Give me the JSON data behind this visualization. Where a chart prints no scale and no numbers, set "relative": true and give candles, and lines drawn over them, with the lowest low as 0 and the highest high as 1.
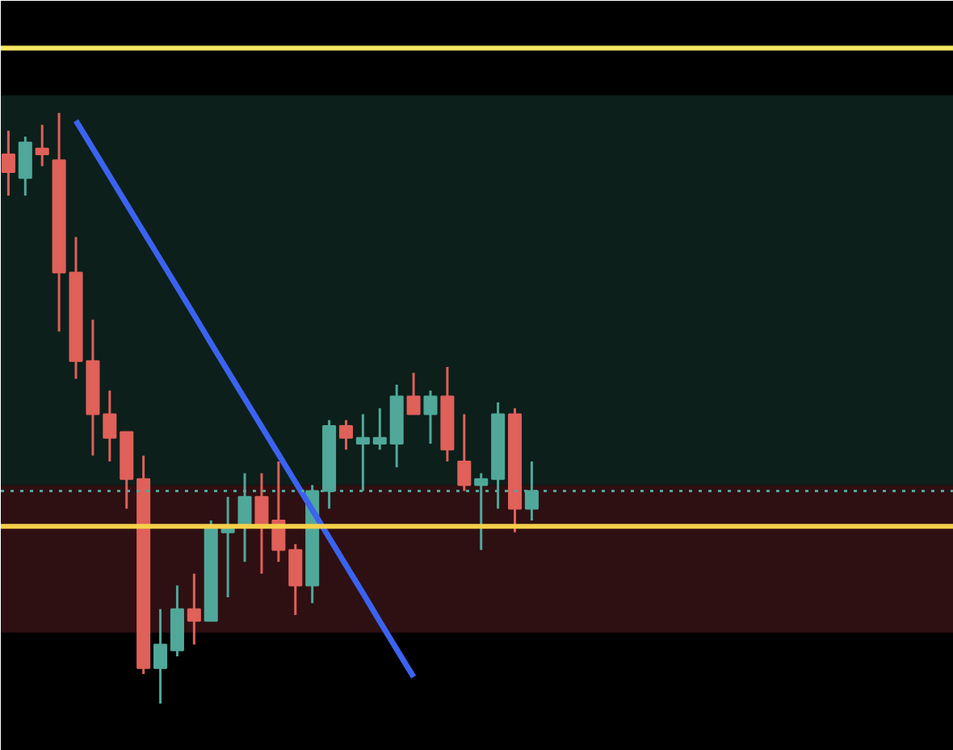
{
  "chart_data": {
    "type": "candlestick",
    "relative": true,
    "categories": [
      null,
      null,
      null,
      null,
      null,
      null,
      null,
      null,
      null,
      null,
      null,
      null,
      null,
      null,
      null,
      null,
      null,
      null,
      null,
      null,
      null,
      null,
      null,
      null,
      null,
      null,
      null,
      null,
      null,
      null,
      null,
      null
    ],
    "ohlc": [
      [
        0.93,
        0.97,
        0.86,
        0.9
      ],
      [
        0.89,
        0.96,
        0.86,
        0.95
      ],
      [
        0.94,
        0.98,
        0.91,
        0.93
      ],
      [
        0.92,
        1.0,
        0.63,
        0.73
      ],
      [
        0.73,
        0.79,
        0.55,
        0.58
      ],
      [
        0.58,
        0.65,
        0.42,
        0.49
      ],
      [
        0.49,
        0.53,
        0.41,
        0.45
      ],
      [
        0.46,
        0.46,
        0.33,
        0.38
      ],
      [
        0.38,
        0.42,
        0.05,
        0.06
      ],
      [
        0.06,
        0.16,
        0.0,
        0.1
      ],
      [
        0.09,
        0.2,
        0.08,
        0.16
      ],
      [
        0.16,
        0.22,
        0.1,
        0.14
      ],
      [
        0.14,
        0.31,
        0.14,
        0.3
      ],
      [
        0.29,
        0.35,
        0.18,
        0.3
      ],
      [
        0.3,
        0.39,
        0.24,
        0.35
      ],
      [
        0.35,
        0.39,
        0.22,
        0.3
      ],
      [
        0.31,
        0.41,
        0.24,
        0.26
      ],
      [
        0.26,
        0.27,
        0.15,
        0.2
      ],
      [
        0.2,
        0.37,
        0.17,
        0.36
      ],
      [
        0.36,
        0.48,
        0.33,
        0.47
      ],
      [
        0.47,
        0.48,
        0.43,
        0.45
      ],
      [
        0.44,
        0.49,
        0.36,
        0.45
      ],
      [
        0.44,
        0.5,
        0.43,
        0.45
      ],
      [
        0.44,
        0.54,
        0.4,
        0.52
      ],
      [
        0.52,
        0.56,
        0.49,
        0.49
      ],
      [
        0.49,
        0.53,
        0.44,
        0.52
      ],
      [
        0.52,
        0.57,
        0.41,
        0.43
      ],
      [
        0.41,
        0.49,
        0.36,
        0.37
      ],
      [
        0.37,
        0.39,
        0.26,
        0.38
      ],
      [
        0.38,
        0.51,
        0.33,
        0.49
      ],
      [
        0.49,
        0.5,
        0.29,
        0.33
      ],
      [
        0.33,
        0.41,
        0.31,
        0.36
      ]
    ],
    "colors": [
      "#e0605a",
      "#4fa89a",
      "#e0605a",
      "#e0605a",
      "#e0605a",
      "#e0605a",
      "#e0605a",
      "#e0605a",
      "#e0605a",
      "#4fa89a",
      "#4fa89a",
      "#e0605a",
      "#4fa89a",
      "#4fa89a",
      "#4fa89a",
      "#e0605a",
      "#e0605a",
      "#e0605a",
      "#4fa89a",
      "#4fa89a",
      "#e0605a",
      "#4fa89a",
      "#4fa89a",
      "#4fa89a",
      "#e0605a",
      "#4fa89a",
      "#e0605a",
      "#e0605a",
      "#4fa89a",
      "#4fa89a",
      "#e0605a",
      "#4fa89a"
    ],
    "series": [
      {
        "type": "line",
        "color": "#3b63f0",
        "values": [
          null,
          null,
          null,
          null,
          0.987,
          0.94,
          0.893,
          0.846,
          0.799,
          0.752,
          0.705,
          0.658,
          0.61,
          0.563,
          0.516,
          0.469,
          0.422,
          0.375,
          0.328,
          0.281,
          0.234,
          0.187,
          0.139,
          0.092,
          0.045,
          null,
          null,
          null,
          null,
          null,
          null,
          null
        ]
      }
    ],
    "ref_lines": [
      {
        "axis": "y",
        "value": 1.11,
        "color": "#f5e663"
      },
      {
        "axis": "y",
        "value": 0.3,
        "color": "#f5d04a"
      },
      {
        "axis": "y",
        "value": 0.36,
        "color": "#4fa89a",
        "line_style": "dotted"
      }
    ],
    "bands": [
      {
        "axis": "y",
        "from": 0.37,
        "to": 1.03,
        "color": "#0c1f1a"
      },
      {
        "axis": "y",
        "from": 0.12,
        "to": 0.37,
        "color": "#2e1012"
      }
    ]
  }
}
